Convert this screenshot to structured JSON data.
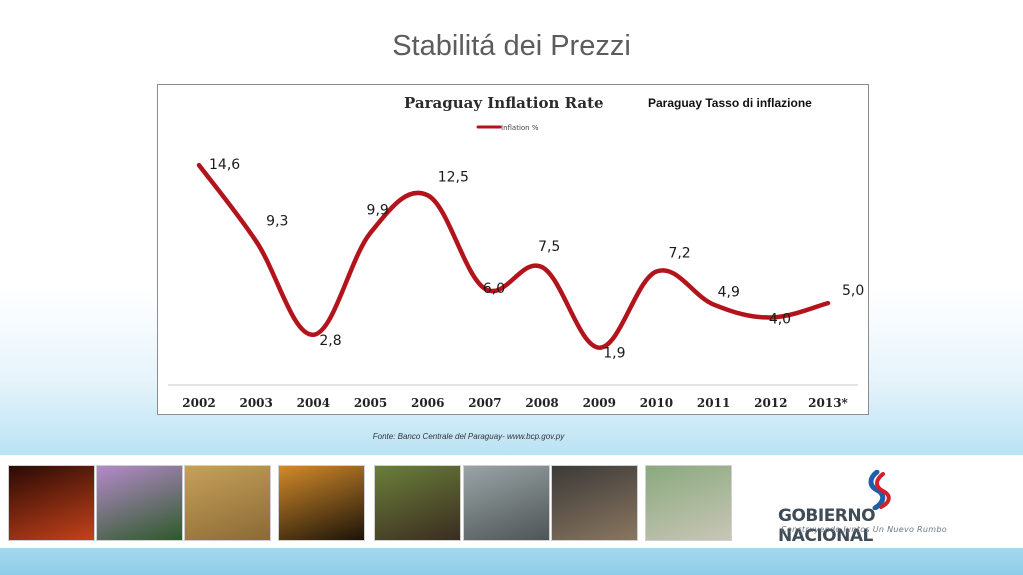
{
  "slide": {
    "title": "Stabilitá dei Prezzi",
    "source": "Fonte: Banco Centrale del  Paraguay- www.bcp.gov.py"
  },
  "chart_data": {
    "type": "line",
    "title": "Paraguay Inflation Rate",
    "subtitle": "Paraguay Tasso di inflazione",
    "categories": [
      "2002",
      "2003",
      "2004",
      "2005",
      "2006",
      "2007",
      "2008",
      "2009",
      "2010",
      "2011",
      "2012",
      "2013*"
    ],
    "series": [
      {
        "name": "Inflation %",
        "values": [
          14.6,
          9.3,
          2.8,
          9.9,
          12.5,
          6.0,
          7.5,
          1.9,
          7.2,
          4.9,
          4.0,
          5.0
        ],
        "labels": [
          "14,6",
          "9,3",
          "2,8",
          "9,9",
          "12,5",
          "6,0",
          "7,5",
          "1,9",
          "7,2",
          "4,9",
          "4,0",
          "5,0"
        ],
        "color": "#b3141c"
      }
    ],
    "legend": "top-center",
    "grid": false,
    "ylim": [
      0,
      16
    ]
  },
  "footer": {
    "photos": [
      {
        "name": "cathedral-photo",
        "c1": "#2a0a05",
        "c2": "#c5421a"
      },
      {
        "name": "lapacho-tree-photo",
        "c1": "#b58ac9",
        "c2": "#2d5a2a"
      },
      {
        "name": "soybean-harvest-photo",
        "c1": "#c7a05a",
        "c2": "#8a6a35"
      },
      {
        "name": "palm-sunset-photo",
        "c1": "#d28a2b",
        "c2": "#1b1308"
      },
      {
        "name": "cattle-herd-photo",
        "c1": "#6a7f3a",
        "c2": "#3b2c20"
      },
      {
        "name": "factory-workers-photo",
        "c1": "#9aa4a6",
        "c2": "#4d5556"
      },
      {
        "name": "industrial-plant-photo",
        "c1": "#3b3a38",
        "c2": "#8a7660"
      },
      {
        "name": "river-barges-photo",
        "c1": "#8aa97e",
        "c2": "#c8c6b6"
      }
    ],
    "logo": {
      "main": "GOBIERNO NACIONAL",
      "sub": "Construyendo Juntos Un Nuevo Rumbo",
      "colors": {
        "red": "#d3202a",
        "blue": "#1f5ea8",
        "gray": "#3f4c56"
      }
    }
  }
}
